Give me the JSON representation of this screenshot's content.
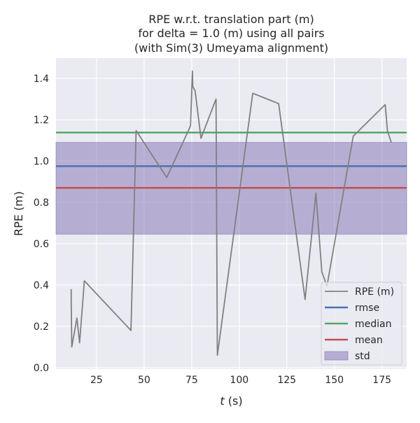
{
  "chart_data": {
    "type": "line",
    "title": [
      "RPE w.r.t. translation part (m)",
      "for delta = 1.0 (m) using all pairs",
      "(with Sim(3) Umeyama alignment)"
    ],
    "xlabel": "t (s)",
    "xlabel_italic_part": "t",
    "xlabel_rest": " (s)",
    "ylabel": "RPE (m)",
    "xlim": [
      3.7,
      188
    ],
    "ylim": [
      -0.007,
      1.498
    ],
    "xticks": [
      25,
      50,
      75,
      100,
      125,
      150,
      175
    ],
    "yticks": [
      0.0,
      0.2,
      0.4,
      0.6,
      0.8,
      1.0,
      1.2,
      1.4
    ],
    "grid": true,
    "legend_position": "bottom-right",
    "series": [
      {
        "name": "RPE (m)",
        "color": "#808080",
        "x": [
          11.7,
          11.7,
          12.0,
          14.7,
          16.1,
          18.6,
          43.1,
          45.8,
          61.9,
          74.4,
          75.4,
          75.6,
          76.8,
          79.9,
          87.8,
          88.5,
          107.1,
          120.7,
          134.6,
          140.3,
          143.4,
          146.1,
          159.9,
          176.7,
          177.9,
          179.9
        ],
        "y": [
          0.38,
          0.31,
          0.1,
          0.24,
          0.12,
          0.42,
          0.18,
          1.147,
          0.92,
          1.17,
          1.435,
          1.36,
          1.34,
          1.11,
          1.3,
          0.06,
          1.328,
          1.278,
          0.33,
          0.844,
          0.463,
          0.395,
          1.12,
          1.273,
          1.145,
          1.09
        ]
      }
    ],
    "hlines": [
      {
        "name": "rmse",
        "value": 0.975,
        "color": "#4c72b0"
      },
      {
        "name": "median",
        "value": 1.138,
        "color": "#55a868"
      },
      {
        "name": "mean",
        "value": 0.87,
        "color": "#c44e52"
      }
    ],
    "band": {
      "name": "std",
      "low": 0.646,
      "high": 1.09,
      "color": "#8172b2"
    }
  }
}
